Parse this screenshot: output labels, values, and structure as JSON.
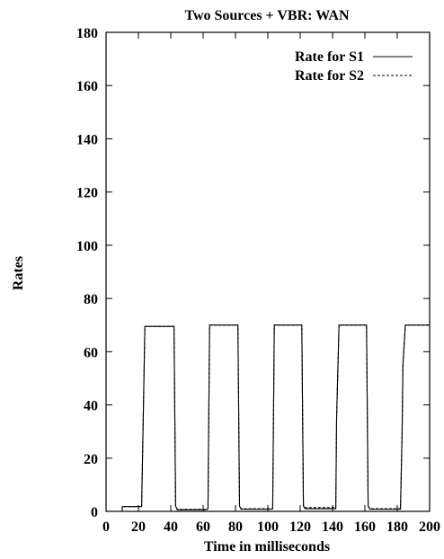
{
  "chart_data": {
    "type": "line",
    "title": "Two Sources + VBR: WAN",
    "xlabel": "Time in milliseconds",
    "ylabel": "Rates",
    "xlim": [
      0,
      200
    ],
    "ylim": [
      0,
      180
    ],
    "x_ticks": [
      0,
      20,
      40,
      60,
      80,
      100,
      120,
      140,
      160,
      180,
      200
    ],
    "y_ticks": [
      0,
      20,
      40,
      60,
      80,
      100,
      120,
      140,
      160,
      180
    ],
    "grid": false,
    "legend_position": "top-right",
    "series": [
      {
        "name": "Rate for S1",
        "color": "#000000",
        "dash": "solid",
        "points": [
          [
            0,
            0
          ],
          [
            10,
            0
          ],
          [
            10,
            1.8
          ],
          [
            20,
            1.8
          ],
          [
            22,
            1.8
          ],
          [
            24,
            69.5
          ],
          [
            42,
            69.5
          ],
          [
            43,
            2
          ],
          [
            44,
            0.6
          ],
          [
            62,
            0.6
          ],
          [
            63,
            1
          ],
          [
            64,
            70
          ],
          [
            81.5,
            70
          ],
          [
            82.5,
            2
          ],
          [
            83.5,
            0.8
          ],
          [
            102,
            0.8
          ],
          [
            103,
            1
          ],
          [
            104,
            70
          ],
          [
            121,
            70
          ],
          [
            122,
            2
          ],
          [
            123,
            1
          ],
          [
            142,
            1
          ],
          [
            142.5,
            35
          ],
          [
            144,
            70
          ],
          [
            161,
            70
          ],
          [
            162,
            2
          ],
          [
            163,
            0.8
          ],
          [
            182,
            0.8
          ],
          [
            183,
            30
          ],
          [
            183.5,
            55
          ],
          [
            185,
            70
          ],
          [
            200,
            70
          ]
        ]
      },
      {
        "name": "Rate for S2",
        "color": "#000000",
        "dash": "dashed",
        "points": [
          [
            0,
            0
          ],
          [
            10,
            0
          ],
          [
            10,
            1.8
          ],
          [
            20,
            1.8
          ],
          [
            22,
            1.8
          ],
          [
            24,
            69.5
          ],
          [
            42,
            69.5
          ],
          [
            43,
            2
          ],
          [
            44,
            0.8
          ],
          [
            62,
            0.8
          ],
          [
            63,
            1
          ],
          [
            64,
            70
          ],
          [
            81.5,
            70
          ],
          [
            82.5,
            2
          ],
          [
            83.5,
            1
          ],
          [
            102,
            1
          ],
          [
            103,
            1
          ],
          [
            104,
            70
          ],
          [
            121,
            70
          ],
          [
            122,
            2
          ],
          [
            123,
            1.4
          ],
          [
            142,
            1.4
          ],
          [
            142.5,
            35
          ],
          [
            144,
            70
          ],
          [
            161,
            70
          ],
          [
            162,
            2
          ],
          [
            163,
            1
          ],
          [
            182,
            1
          ],
          [
            183,
            30
          ],
          [
            183.5,
            55
          ],
          [
            185,
            70
          ],
          [
            200,
            70
          ]
        ]
      }
    ]
  }
}
